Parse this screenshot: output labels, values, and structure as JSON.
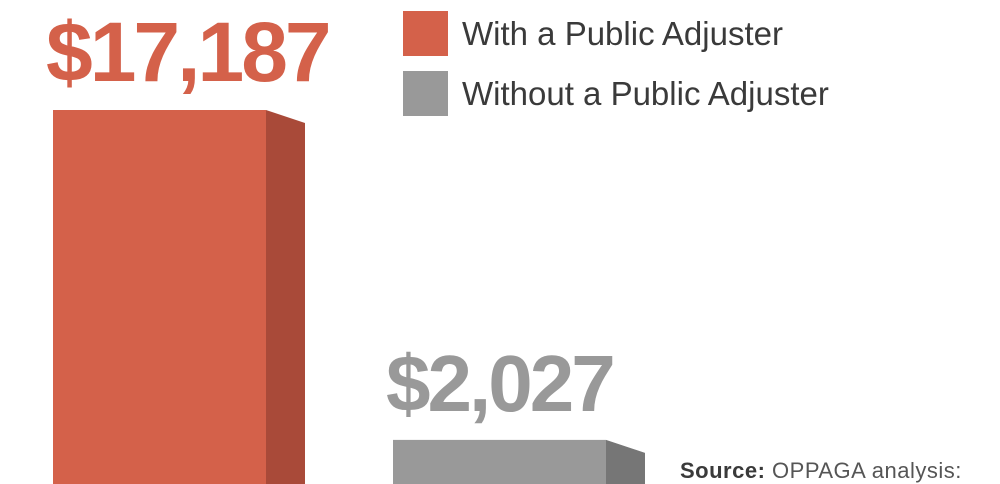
{
  "chart_data": {
    "type": "bar",
    "categories": [
      "With a Public Adjuster",
      "Without a Public Adjuster"
    ],
    "values": [
      17187,
      2027
    ],
    "value_labels": [
      "$17,187",
      "$2,027"
    ],
    "colors": [
      "#d4614a",
      "#999999"
    ],
    "side_colors": [
      "#a94a39",
      "#767676"
    ],
    "legend": [
      {
        "label": "With a Public Adjuster",
        "color": "#d4614a"
      },
      {
        "label": "Without a Public Adjuster",
        "color": "#999999"
      }
    ],
    "legend_position": "top-right",
    "grid": false,
    "axes_visible": false,
    "ylim": [
      0,
      17187
    ]
  },
  "source": {
    "label": "Source:",
    "text": "OPPAGA analysis:"
  }
}
